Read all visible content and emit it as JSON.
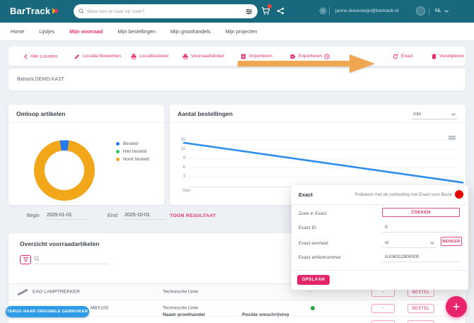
{
  "header": {
    "logo_text": "BarTrack",
    "search_placeholder": "Waar ben je naar op zoek?",
    "user_email": "janne.duivesteijn@bartrack.nl",
    "language": "NL"
  },
  "nav": {
    "items": [
      {
        "label": "Home",
        "active": false
      },
      {
        "label": "Lijstjes",
        "active": false
      },
      {
        "label": "Mijn voorraad",
        "active": true
      },
      {
        "label": "Mijn bestellingen",
        "active": false
      },
      {
        "label": "Mijn groothandels",
        "active": false
      },
      {
        "label": "Mijn projecten",
        "active": false
      }
    ]
  },
  "toolbar": {
    "items": [
      {
        "label": "Alle Locaties",
        "icon": "chevron-left"
      },
      {
        "label": "Locatie Bewerken",
        "icon": "pencil"
      },
      {
        "label": "Locatiesticker",
        "icon": "printer"
      },
      {
        "label": "Voorraadsticker",
        "icon": "printer"
      },
      {
        "label": "Importeren",
        "icon": "import"
      },
      {
        "label": "Exporteren",
        "icon": "export"
      },
      {
        "label": "",
        "icon": "history"
      },
      {
        "label": "Exact",
        "icon": "refresh"
      },
      {
        "label": "Verwijderen",
        "icon": "trash"
      }
    ]
  },
  "annotation": {
    "type": "arrow",
    "color": "#F0A44A",
    "points_to": "Exact"
  },
  "breadcrumb": {
    "path": "Batrack.DEMO.KAST"
  },
  "cards": {
    "omloop": {
      "title": "Omloop artikelen"
    },
    "bestellingen": {
      "title": "Aantal bestellingen",
      "filter_value": "Alle"
    }
  },
  "chart_data": [
    {
      "type": "pie",
      "donut": true,
      "title": "Omloop artikelen",
      "labels": [
        "Besteld",
        "Niet besteld",
        "Nooit besteld"
      ],
      "values": [
        4.9,
        0,
        95.1
      ],
      "unit": "%",
      "colors": [
        "#2979EE",
        "#2BC46D",
        "#F2A71B"
      ],
      "visible_value_labels": [
        "4.9%",
        "95.1%"
      ],
      "legend_position": "right"
    },
    {
      "type": "line",
      "title": "Aantal bestellingen",
      "x_labels": [
        "Sep"
      ],
      "series": [
        {
          "name": "Aantal bestellingen",
          "values": [
            15,
            2
          ]
        }
      ],
      "yticks": [
        15,
        12,
        9,
        6,
        3
      ],
      "ylim": [
        0,
        16
      ],
      "color": "#2E8FEA",
      "grid": true,
      "legend_position": "none"
    }
  ],
  "date_filter": {
    "begin_label": "Begin",
    "begin_value": "2025-01-01",
    "eind_label": "Eind",
    "eind_value": "2025-10-01",
    "action_label": "TOON RESULTAAT"
  },
  "table": {
    "title": "Overzicht voorraadartikelen",
    "columns": [
      "Product naam",
      "Naam groothandel",
      "Positie omschrijving"
    ],
    "rows": [
      {
        "product": "EAO LAMPTREKKER",
        "groothandel": "Technische Unie",
        "status": "dash",
        "minus_label": "-",
        "bestel_label": "BESTEL"
      },
      {
        "product": "M8X100",
        "groothandel": "Technische Unie",
        "status": "green",
        "minus_label": "-",
        "bestel_label": "BESTEL"
      }
    ]
  },
  "modal": {
    "title": "Exact",
    "status_message": "Probleem met de verbinding met Exact voor Bouw",
    "fields": [
      {
        "label": "Zoek in Exact",
        "button_label": "ZOEKEN"
      },
      {
        "label": "Exact ID",
        "value": "0"
      },
      {
        "label": "Exact eenheid",
        "value": "st",
        "secondary_button": "BEHEER"
      },
      {
        "label": "Exact artikelnummer",
        "value": "A106312900000"
      }
    ],
    "save_label": "OPSLAAN"
  },
  "floating": {
    "impersonation_label": "TERUG NAAR ORIGINELE GEBRUIKER",
    "fab_label": "+"
  },
  "colors": {
    "header_bg": "#19697E",
    "brand_pink": "#E8326F",
    "arrow_orange": "#F0A44A",
    "link_blue": "#2E9BE8",
    "status_green": "#27A844",
    "alert_red": "#E60000"
  }
}
